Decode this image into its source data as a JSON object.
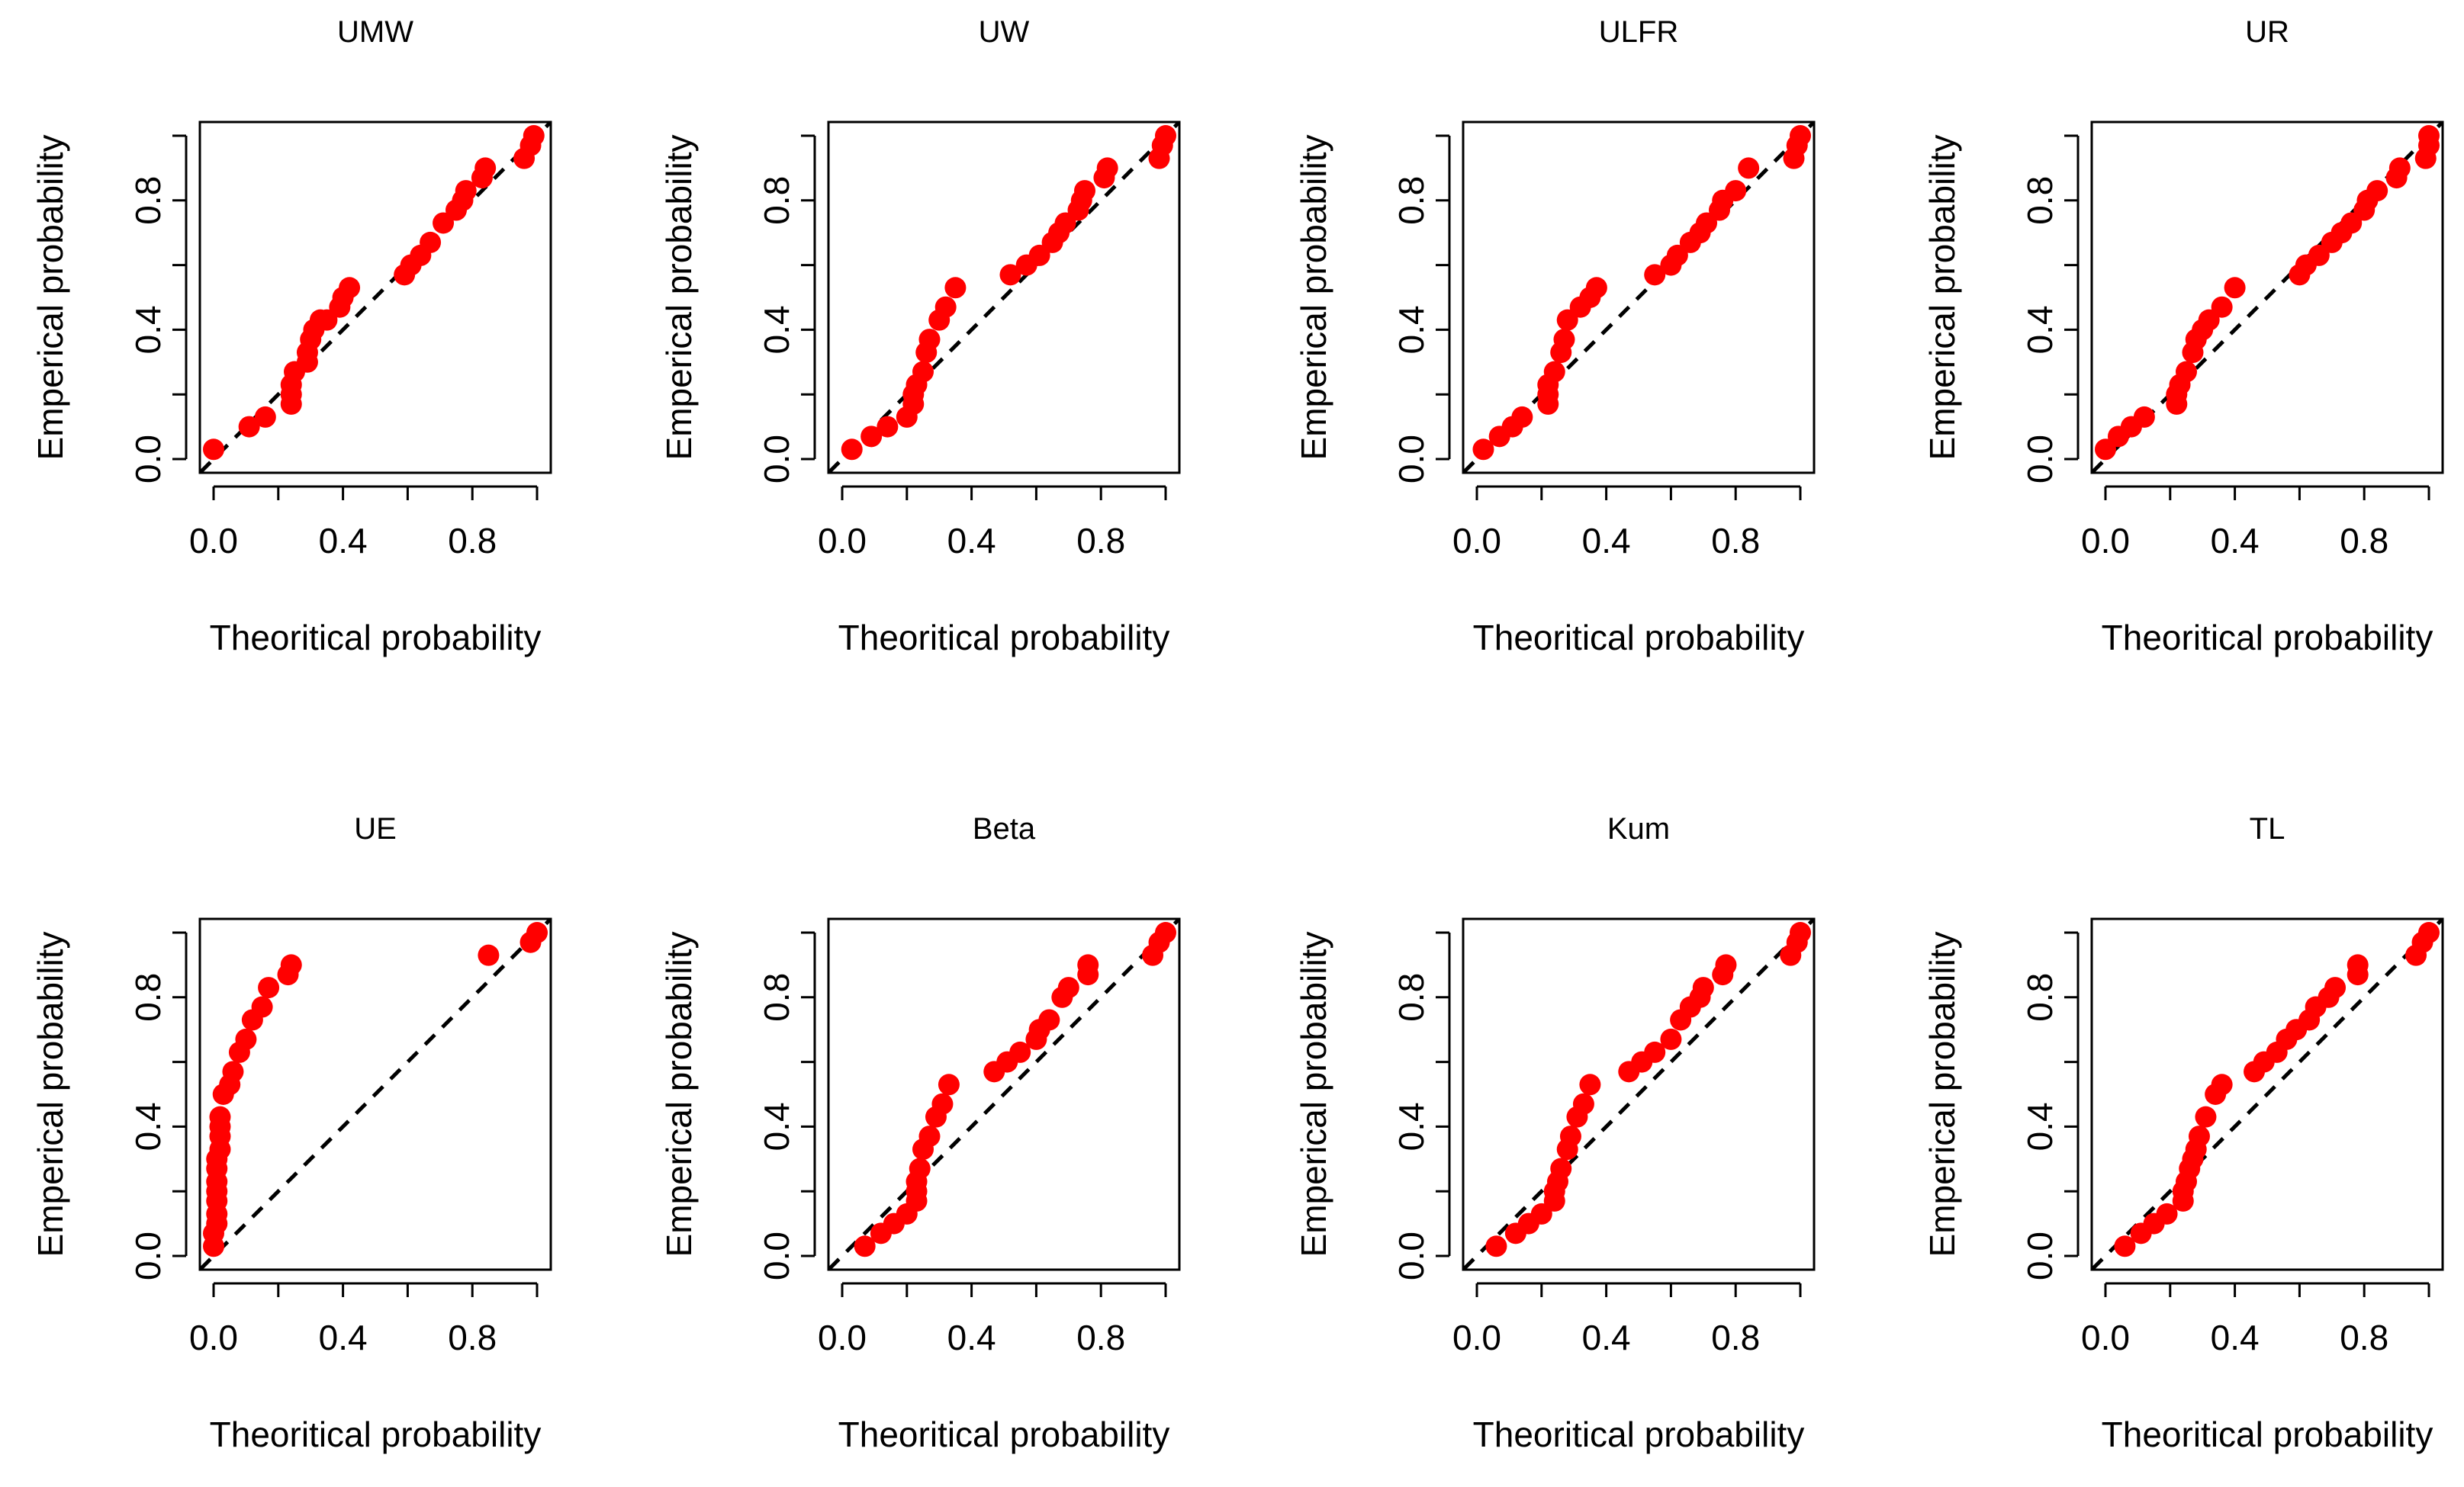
{
  "chart_data": [
    {
      "type": "scatter",
      "title": "UMW",
      "xlabel": "Theoritical probability",
      "ylabel": "Emperical probability",
      "xlim": [
        0,
        1
      ],
      "ylim": [
        0,
        1
      ],
      "ticks": [
        "0.0",
        "0.4",
        "0.8"
      ],
      "x": [
        0.0,
        0.11,
        0.16,
        0.24,
        0.24,
        0.24,
        0.25,
        0.29,
        0.29,
        0.3,
        0.31,
        0.33,
        0.35,
        0.39,
        0.4,
        0.42,
        0.59,
        0.61,
        0.64,
        0.67,
        0.71,
        0.75,
        0.77,
        0.78,
        0.83,
        0.84,
        0.96,
        0.98,
        0.99
      ],
      "y": [
        0.03,
        0.1,
        0.13,
        0.17,
        0.2,
        0.23,
        0.27,
        0.3,
        0.33,
        0.37,
        0.4,
        0.43,
        0.43,
        0.47,
        0.5,
        0.53,
        0.57,
        0.6,
        0.63,
        0.67,
        0.73,
        0.77,
        0.8,
        0.83,
        0.87,
        0.9,
        0.93,
        0.97,
        1.0
      ],
      "ref_line": [
        [
          0,
          0
        ],
        [
          1,
          1
        ]
      ]
    },
    {
      "type": "scatter",
      "title": "UW",
      "xlabel": "Theoritical probability",
      "ylabel": "Emperical probability",
      "xlim": [
        0,
        1
      ],
      "ylim": [
        0,
        1
      ],
      "ticks": [
        "0.0",
        "0.4",
        "0.8"
      ],
      "x": [
        0.03,
        0.09,
        0.14,
        0.2,
        0.22,
        0.22,
        0.23,
        0.25,
        0.26,
        0.27,
        0.3,
        0.32,
        0.35,
        0.52,
        0.57,
        0.61,
        0.65,
        0.67,
        0.69,
        0.73,
        0.74,
        0.75,
        0.81,
        0.82,
        0.98,
        0.99,
        1.0
      ],
      "y": [
        0.03,
        0.07,
        0.1,
        0.13,
        0.17,
        0.2,
        0.23,
        0.27,
        0.33,
        0.37,
        0.43,
        0.47,
        0.53,
        0.57,
        0.6,
        0.63,
        0.67,
        0.7,
        0.73,
        0.77,
        0.8,
        0.83,
        0.87,
        0.9,
        0.93,
        0.97,
        1.0
      ],
      "ref_line": [
        [
          0,
          0
        ],
        [
          1,
          1
        ]
      ]
    },
    {
      "type": "scatter",
      "title": "ULFR",
      "xlabel": "Theoritical probability",
      "ylabel": "Emperical probability",
      "xlim": [
        0,
        1
      ],
      "ylim": [
        0,
        1
      ],
      "ticks": [
        "0.0",
        "0.4",
        "0.8"
      ],
      "x": [
        0.02,
        0.07,
        0.11,
        0.14,
        0.22,
        0.22,
        0.22,
        0.24,
        0.26,
        0.27,
        0.28,
        0.32,
        0.35,
        0.37,
        0.55,
        0.6,
        0.62,
        0.66,
        0.69,
        0.71,
        0.75,
        0.76,
        0.8,
        0.84,
        0.98,
        0.99,
        1.0
      ],
      "y": [
        0.03,
        0.07,
        0.1,
        0.13,
        0.17,
        0.2,
        0.23,
        0.27,
        0.33,
        0.37,
        0.43,
        0.47,
        0.5,
        0.53,
        0.57,
        0.6,
        0.63,
        0.67,
        0.7,
        0.73,
        0.77,
        0.8,
        0.83,
        0.9,
        0.93,
        0.97,
        1.0
      ],
      "ref_line": [
        [
          0,
          0
        ],
        [
          1,
          1
        ]
      ]
    },
    {
      "type": "scatter",
      "title": "UR",
      "xlabel": "Theoritical probability",
      "ylabel": "Emperical probability",
      "xlim": [
        0,
        1
      ],
      "ylim": [
        0,
        1
      ],
      "ticks": [
        "0.0",
        "0.4",
        "0.8"
      ],
      "x": [
        0.0,
        0.04,
        0.08,
        0.12,
        0.22,
        0.22,
        0.23,
        0.25,
        0.27,
        0.28,
        0.3,
        0.32,
        0.36,
        0.4,
        0.6,
        0.62,
        0.66,
        0.7,
        0.73,
        0.76,
        0.8,
        0.81,
        0.84,
        0.9,
        0.91,
        0.99,
        1.0,
        1.0
      ],
      "y": [
        0.03,
        0.07,
        0.1,
        0.13,
        0.17,
        0.2,
        0.23,
        0.27,
        0.33,
        0.37,
        0.4,
        0.43,
        0.47,
        0.53,
        0.57,
        0.6,
        0.63,
        0.67,
        0.7,
        0.73,
        0.77,
        0.8,
        0.83,
        0.87,
        0.9,
        0.93,
        0.97,
        1.0
      ],
      "ref_line": [
        [
          0,
          0
        ],
        [
          1,
          1
        ]
      ]
    },
    {
      "type": "scatter",
      "title": "UE",
      "xlabel": "Theoritical probability",
      "ylabel": "Emperical probability",
      "xlim": [
        0,
        1
      ],
      "ylim": [
        0,
        1
      ],
      "ticks": [
        "0.0",
        "0.4",
        "0.8"
      ],
      "x": [
        0.0,
        0.0,
        0.01,
        0.01,
        0.01,
        0.01,
        0.01,
        0.01,
        0.01,
        0.02,
        0.02,
        0.02,
        0.02,
        0.03,
        0.05,
        0.06,
        0.08,
        0.1,
        0.12,
        0.15,
        0.17,
        0.23,
        0.24,
        0.85,
        0.98,
        1.0
      ],
      "y": [
        0.03,
        0.07,
        0.1,
        0.13,
        0.17,
        0.2,
        0.23,
        0.27,
        0.3,
        0.33,
        0.37,
        0.4,
        0.43,
        0.5,
        0.53,
        0.57,
        0.63,
        0.67,
        0.73,
        0.77,
        0.83,
        0.87,
        0.9,
        0.93,
        0.97,
        1.0
      ],
      "ref_line": [
        [
          0,
          0
        ],
        [
          1,
          1
        ]
      ]
    },
    {
      "type": "scatter",
      "title": "Beta",
      "xlabel": "Theoritical probability",
      "ylabel": "Emperical probability",
      "xlim": [
        0,
        1
      ],
      "ylim": [
        0,
        1
      ],
      "ticks": [
        "0.0",
        "0.4",
        "0.8"
      ],
      "x": [
        0.07,
        0.12,
        0.16,
        0.2,
        0.23,
        0.23,
        0.23,
        0.24,
        0.25,
        0.27,
        0.29,
        0.31,
        0.33,
        0.47,
        0.51,
        0.55,
        0.6,
        0.61,
        0.64,
        0.68,
        0.7,
        0.76,
        0.76,
        0.96,
        0.98,
        1.0
      ],
      "y": [
        0.03,
        0.07,
        0.1,
        0.13,
        0.17,
        0.2,
        0.23,
        0.27,
        0.33,
        0.37,
        0.43,
        0.47,
        0.53,
        0.57,
        0.6,
        0.63,
        0.67,
        0.7,
        0.73,
        0.8,
        0.83,
        0.87,
        0.9,
        0.93,
        0.97,
        1.0
      ],
      "ref_line": [
        [
          0,
          0
        ],
        [
          1,
          1
        ]
      ]
    },
    {
      "type": "scatter",
      "title": "Kum",
      "xlabel": "Theoritical probability",
      "ylabel": "Emperical probability",
      "xlim": [
        0,
        1
      ],
      "ylim": [
        0,
        1
      ],
      "ticks": [
        "0.0",
        "0.4",
        "0.8"
      ],
      "x": [
        0.06,
        0.12,
        0.16,
        0.2,
        0.24,
        0.24,
        0.25,
        0.26,
        0.28,
        0.29,
        0.31,
        0.33,
        0.35,
        0.47,
        0.51,
        0.55,
        0.6,
        0.63,
        0.66,
        0.69,
        0.7,
        0.76,
        0.77,
        0.97,
        0.99,
        1.0
      ],
      "y": [
        0.03,
        0.07,
        0.1,
        0.13,
        0.17,
        0.2,
        0.23,
        0.27,
        0.33,
        0.37,
        0.43,
        0.47,
        0.53,
        0.57,
        0.6,
        0.63,
        0.67,
        0.73,
        0.77,
        0.8,
        0.83,
        0.87,
        0.9,
        0.93,
        0.97,
        1.0
      ],
      "ref_line": [
        [
          0,
          0
        ],
        [
          1,
          1
        ]
      ]
    },
    {
      "type": "scatter",
      "title": "TL",
      "xlabel": "Theoritical probability",
      "ylabel": "Emperical probability",
      "xlim": [
        0,
        1
      ],
      "ylim": [
        0,
        1
      ],
      "ticks": [
        "0.0",
        "0.4",
        "0.8"
      ],
      "x": [
        0.06,
        0.11,
        0.15,
        0.19,
        0.24,
        0.24,
        0.25,
        0.26,
        0.27,
        0.28,
        0.29,
        0.31,
        0.34,
        0.36,
        0.46,
        0.49,
        0.53,
        0.56,
        0.59,
        0.63,
        0.65,
        0.69,
        0.71,
        0.78,
        0.78,
        0.96,
        0.98,
        1.0
      ],
      "y": [
        0.03,
        0.07,
        0.1,
        0.13,
        0.17,
        0.2,
        0.23,
        0.27,
        0.3,
        0.33,
        0.37,
        0.43,
        0.5,
        0.53,
        0.57,
        0.6,
        0.63,
        0.67,
        0.7,
        0.73,
        0.77,
        0.8,
        0.83,
        0.87,
        0.9,
        0.93,
        0.97,
        1.0
      ],
      "ref_line": [
        [
          0,
          0
        ],
        [
          1,
          1
        ]
      ]
    }
  ]
}
